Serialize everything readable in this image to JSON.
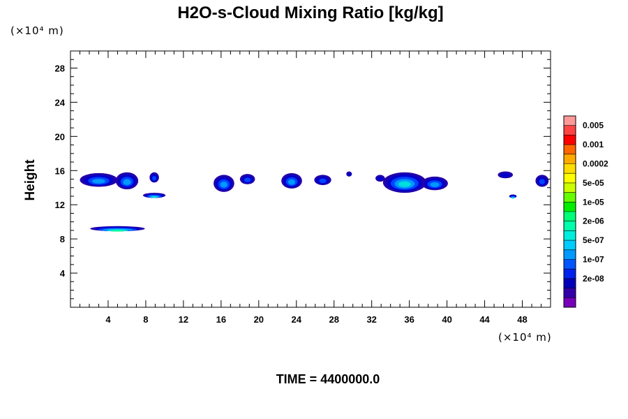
{
  "chart_data": {
    "type": "heatmap",
    "title": "H2O-s-Cloud Mixing Ratio [kg/kg]",
    "xlabel": "",
    "ylabel": "Height",
    "x_unit_label": "(×10⁴ m)",
    "y_unit_label": "(×10⁴ m)",
    "xlim": [
      0,
      51
    ],
    "ylim": [
      0,
      30
    ],
    "x_ticks": [
      4,
      8,
      12,
      16,
      20,
      24,
      28,
      32,
      36,
      40,
      44,
      48
    ],
    "y_ticks": [
      4,
      8,
      12,
      16,
      20,
      24,
      28
    ],
    "time_label": "TIME = 4400000.0",
    "colorbar": {
      "labels": [
        "0.005",
        "0.001",
        "0.0002",
        "5e-05",
        "1e-05",
        "2e-06",
        "5e-07",
        "1e-07",
        "2e-08"
      ],
      "colors": [
        "#ff9999",
        "#ff4444",
        "#ff0000",
        "#ff6600",
        "#ffaa00",
        "#ffdd00",
        "#ffff00",
        "#ccff00",
        "#66ff00",
        "#00ee00",
        "#00ff77",
        "#00ffaa",
        "#00eedd",
        "#00ccff",
        "#0099ff",
        "#0055ff",
        "#0022ee",
        "#0000bb",
        "#3300aa",
        "#7700bb"
      ]
    },
    "cloud_features": [
      {
        "x_center": 3.0,
        "y_center": 14.9,
        "half_width": 2.0,
        "half_height": 0.8,
        "max_level": 3
      },
      {
        "x_center": 6.0,
        "y_center": 14.8,
        "half_width": 1.2,
        "half_height": 1.0,
        "max_level": 3
      },
      {
        "x_center": 8.9,
        "y_center": 15.2,
        "half_width": 0.5,
        "half_height": 0.6,
        "max_level": 2
      },
      {
        "x_center": 8.9,
        "y_center": 13.1,
        "half_width": 1.2,
        "half_height": 0.3,
        "max_level": 4
      },
      {
        "x_center": 5.0,
        "y_center": 9.2,
        "half_width": 2.9,
        "half_height": 0.3,
        "max_level": 5
      },
      {
        "x_center": 16.3,
        "y_center": 14.5,
        "half_width": 1.1,
        "half_height": 1.0,
        "max_level": 3
      },
      {
        "x_center": 18.8,
        "y_center": 15.0,
        "half_width": 0.8,
        "half_height": 0.6,
        "max_level": 2
      },
      {
        "x_center": 23.5,
        "y_center": 14.8,
        "half_width": 1.1,
        "half_height": 0.9,
        "max_level": 3
      },
      {
        "x_center": 26.8,
        "y_center": 14.9,
        "half_width": 0.9,
        "half_height": 0.6,
        "max_level": 2
      },
      {
        "x_center": 29.6,
        "y_center": 15.6,
        "half_width": 0.3,
        "half_height": 0.3,
        "max_level": 1
      },
      {
        "x_center": 32.9,
        "y_center": 15.1,
        "half_width": 0.5,
        "half_height": 0.4,
        "max_level": 1
      },
      {
        "x_center": 35.5,
        "y_center": 14.6,
        "half_width": 2.3,
        "half_height": 1.2,
        "max_level": 4
      },
      {
        "x_center": 38.7,
        "y_center": 14.5,
        "half_width": 1.4,
        "half_height": 0.8,
        "max_level": 3
      },
      {
        "x_center": 46.2,
        "y_center": 15.5,
        "half_width": 0.8,
        "half_height": 0.4,
        "max_level": 1
      },
      {
        "x_center": 47.0,
        "y_center": 13.0,
        "half_width": 0.4,
        "half_height": 0.2,
        "max_level": 4
      },
      {
        "x_center": 50.1,
        "y_center": 14.8,
        "half_width": 0.7,
        "half_height": 0.7,
        "max_level": 2
      }
    ]
  }
}
